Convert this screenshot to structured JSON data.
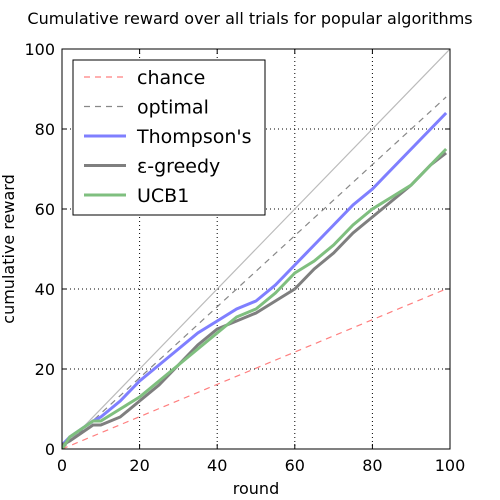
{
  "chart_data": {
    "type": "line",
    "title": "Cumulative reward over all trials for popular algorithms",
    "xlabel": "round",
    "ylabel": "cumulative reward",
    "xlim": [
      0,
      100
    ],
    "ylim": [
      0,
      100
    ],
    "xticks": [
      0,
      20,
      40,
      60,
      80,
      100
    ],
    "yticks": [
      0,
      20,
      40,
      60,
      80,
      100
    ],
    "grid": true,
    "legend_position": "top-left",
    "reference_line": {
      "x": [
        0,
        100
      ],
      "y": [
        0,
        100
      ],
      "color": "#bbbbbb"
    },
    "series": [
      {
        "name": "chance",
        "style": "dashed",
        "color": "#ff7f7f",
        "x": [
          0,
          99
        ],
        "y": [
          0,
          40
        ]
      },
      {
        "name": "optimal",
        "style": "dashed",
        "color": "#888888",
        "x": [
          0,
          99
        ],
        "y": [
          0,
          88
        ]
      },
      {
        "name": "Thompson's",
        "style": "solid",
        "color": "#7f7fff",
        "x": [
          0,
          2,
          5,
          8,
          10,
          15,
          20,
          25,
          30,
          35,
          40,
          45,
          50,
          55,
          60,
          65,
          70,
          75,
          80,
          85,
          90,
          95,
          99
        ],
        "y": [
          1,
          3,
          5,
          7,
          8,
          12,
          17,
          21,
          25,
          29,
          32,
          35,
          37,
          41,
          46,
          51,
          56,
          61,
          65,
          70,
          75,
          80,
          84
        ]
      },
      {
        "name": "ε-greedy",
        "style": "solid",
        "color": "#7f7f7f",
        "x": [
          0,
          2,
          5,
          8,
          10,
          15,
          20,
          25,
          30,
          35,
          40,
          45,
          50,
          55,
          60,
          65,
          70,
          75,
          80,
          85,
          90,
          95,
          99
        ],
        "y": [
          1,
          2,
          4,
          6,
          6,
          8,
          12,
          16,
          21,
          26,
          30,
          32,
          34,
          37,
          40,
          45,
          49,
          54,
          58,
          62,
          66,
          71,
          74
        ]
      },
      {
        "name": "UCB1",
        "style": "solid",
        "color": "#7fbf7f",
        "x": [
          0,
          2,
          5,
          8,
          10,
          15,
          20,
          25,
          30,
          35,
          40,
          45,
          50,
          55,
          60,
          65,
          70,
          75,
          80,
          85,
          90,
          95,
          99
        ],
        "y": [
          0,
          3,
          5,
          7,
          7,
          10,
          13,
          17,
          21,
          25,
          29,
          33,
          35,
          39,
          44,
          47,
          51,
          56,
          60,
          63,
          66,
          71,
          75
        ]
      }
    ]
  }
}
